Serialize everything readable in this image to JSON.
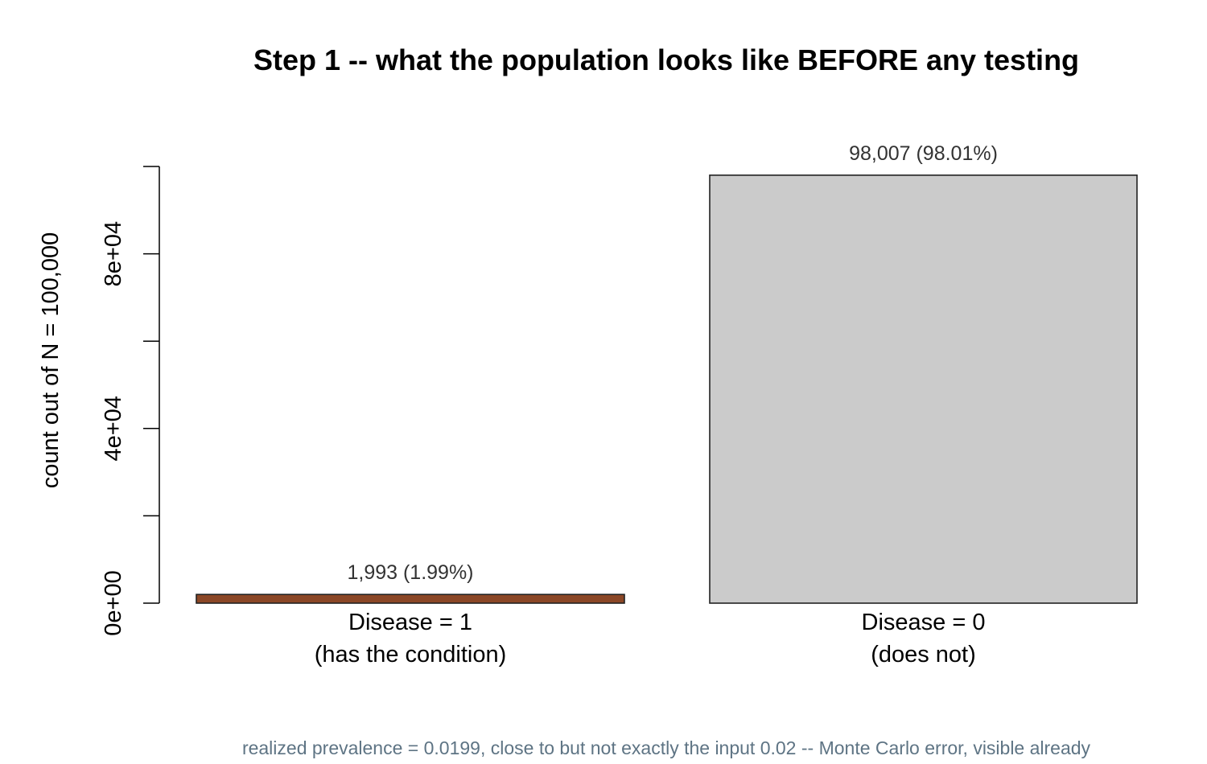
{
  "chart_data": {
    "type": "bar",
    "title": "Step 1 -- what the population looks like BEFORE any testing",
    "ylabel": "count out of N = 100,000",
    "xlabel": "",
    "ylim": [
      0,
      100000
    ],
    "y_ticks": [
      0,
      20000,
      40000,
      60000,
      80000,
      100000
    ],
    "y_tick_labels": [
      "0e+00",
      "",
      "4e+04",
      "",
      "8e+04",
      ""
    ],
    "categories": [
      {
        "line1": "Disease = 1",
        "line2": "(has the condition)"
      },
      {
        "line1": "Disease = 0",
        "line2": "(does not)"
      }
    ],
    "values": [
      1993,
      98007
    ],
    "data_labels": [
      "1,993 (1.99%)",
      "98,007 (98.01%)"
    ],
    "colors": [
      "#8B4726",
      "#CBCBCB"
    ],
    "caption": "realized prevalence = 0.0199, close to but not exactly the input 0.02 -- Monte Carlo error, visible already",
    "caption_color": "#5E7484",
    "grid": false,
    "legend": "none"
  }
}
